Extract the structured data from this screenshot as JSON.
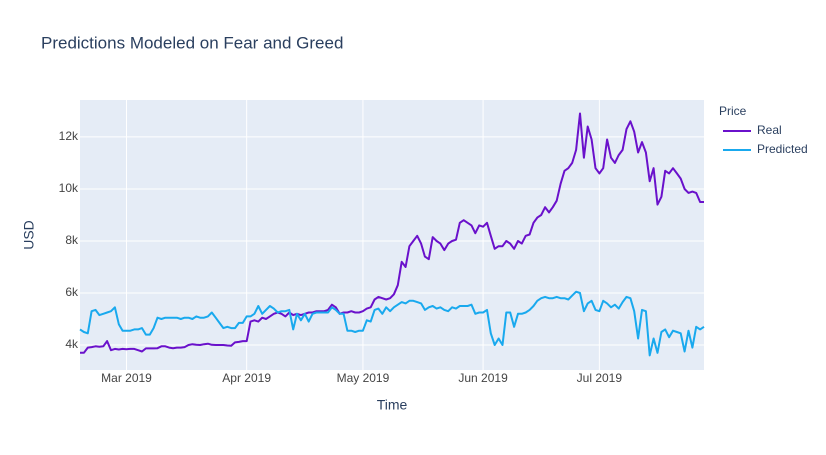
{
  "chart_data": {
    "type": "line",
    "title": "Predictions Modeled on Fear and Greed",
    "x_label": "Time",
    "y_label": "USD",
    "legend_title": "Price",
    "grid": true,
    "xlim": [
      0,
      161
    ],
    "xticks": [
      {
        "value": 12,
        "label": "Mar 2019"
      },
      {
        "value": 43,
        "label": "Apr 2019"
      },
      {
        "value": 73,
        "label": "May 2019"
      },
      {
        "value": 104,
        "label": "Jun 2019"
      },
      {
        "value": 134,
        "label": "Jul 2019"
      }
    ],
    "ylim": [
      3040,
      13420
    ],
    "yticks": [
      {
        "value": 4000,
        "label": "4k"
      },
      {
        "value": 6000,
        "label": "6k"
      },
      {
        "value": 8000,
        "label": "8k"
      },
      {
        "value": 10000,
        "label": "10k"
      },
      {
        "value": 12000,
        "label": "12k"
      }
    ],
    "series": [
      {
        "name": "Real",
        "color": "#6a11cb",
        "values": [
          3700,
          3700,
          3900,
          3920,
          3950,
          3930,
          3950,
          4150,
          3800,
          3850,
          3830,
          3850,
          3840,
          3850,
          3850,
          3800,
          3750,
          3870,
          3870,
          3870,
          3880,
          3950,
          3950,
          3900,
          3880,
          3900,
          3900,
          3920,
          4000,
          4030,
          4010,
          4000,
          4030,
          4050,
          4010,
          4000,
          4000,
          4000,
          3980,
          3970,
          4100,
          4120,
          4150,
          4150,
          4900,
          4950,
          4900,
          5050,
          5000,
          5100,
          5200,
          5250,
          5200,
          5100,
          5250,
          5150,
          5200,
          5150,
          5200,
          5250,
          5250,
          5300,
          5300,
          5300,
          5350,
          5550,
          5450,
          5200,
          5250,
          5250,
          5300,
          5250,
          5250,
          5300,
          5400,
          5450,
          5750,
          5850,
          5800,
          5750,
          5800,
          5950,
          6300,
          7200,
          7000,
          7800,
          8000,
          8200,
          7900,
          7400,
          7300,
          8150,
          8000,
          7900,
          7650,
          7900,
          8000,
          8050,
          8700,
          8800,
          8700,
          8600,
          8300,
          8600,
          8550,
          8700,
          8200,
          7700,
          7800,
          7800,
          8000,
          7900,
          7700,
          8000,
          7900,
          8200,
          8250,
          8700,
          8900,
          9000,
          9300,
          9100,
          9300,
          9550,
          10200,
          10700,
          10800,
          11000,
          11500,
          12900,
          11200,
          12400,
          11900,
          10800,
          10600,
          10800,
          11900,
          11200,
          11000,
          11300,
          11500,
          12300,
          12600,
          12200,
          11400,
          11800,
          11400,
          10300,
          10800,
          9400,
          9700,
          10700,
          10600,
          10800,
          10600,
          10400,
          10000,
          9850,
          9900,
          9850,
          9500,
          9500
        ]
      },
      {
        "name": "Predicted",
        "color": "#19a9ee",
        "values": [
          4600,
          4500,
          4450,
          5300,
          5350,
          5150,
          5200,
          5250,
          5300,
          5450,
          4800,
          4550,
          4550,
          4550,
          4600,
          4600,
          4650,
          4400,
          4400,
          4650,
          5050,
          5000,
          5050,
          5050,
          5050,
          5050,
          5000,
          5050,
          5050,
          5000,
          5100,
          5050,
          5050,
          5100,
          5250,
          5050,
          4850,
          4650,
          4700,
          4650,
          4650,
          4850,
          4850,
          5100,
          5100,
          5200,
          5500,
          5200,
          5350,
          5500,
          5400,
          5250,
          5300,
          5300,
          5350,
          4600,
          5200,
          4950,
          5200,
          4900,
          5200,
          5250,
          5250,
          5250,
          5250,
          5450,
          5350,
          5200,
          5200,
          4550,
          4550,
          4500,
          4550,
          4550,
          4950,
          4900,
          5350,
          5400,
          5200,
          5450,
          5300,
          5450,
          5550,
          5650,
          5600,
          5700,
          5700,
          5650,
          5600,
          5350,
          5450,
          5500,
          5400,
          5450,
          5350,
          5300,
          5450,
          5400,
          5500,
          5500,
          5500,
          5550,
          5200,
          5250,
          5250,
          5350,
          4450,
          4000,
          4250,
          4000,
          5250,
          5250,
          4700,
          5200,
          5200,
          5250,
          5350,
          5500,
          5700,
          5800,
          5850,
          5800,
          5800,
          5850,
          5800,
          5800,
          5750,
          5900,
          6050,
          6000,
          5300,
          5600,
          5700,
          5350,
          5300,
          5700,
          5600,
          5450,
          5550,
          5400,
          5650,
          5850,
          5800,
          5300,
          4250,
          5350,
          5300,
          3600,
          4250,
          3700,
          4500,
          4600,
          4300,
          4550,
          4500,
          4450,
          3750,
          4550,
          3900,
          4700,
          4600,
          4700
        ]
      }
    ]
  }
}
